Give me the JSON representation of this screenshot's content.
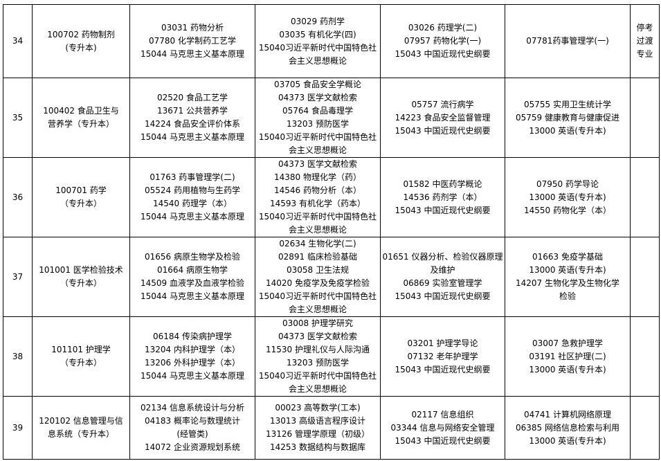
{
  "rows": [
    {
      "num": "34",
      "major": [
        "100702 药物制剂",
        "(专升本)"
      ],
      "cols": [
        [
          "03031 药物分析",
          "07780 化学制药工艺学",
          "15044 马克思主义基本原理"
        ],
        [
          "03029 药剂学",
          "03035 有机化学(四)",
          "15040习近平新时代中国特色社",
          "会主义思想概论"
        ],
        [
          "03026 药理学(二)",
          "07957 药物化学(一)",
          "15043 中国近现代史纲要"
        ],
        [
          "07781药事管理学(一)"
        ]
      ],
      "note": [
        "停考",
        "过渡",
        "专业"
      ]
    },
    {
      "num": "35",
      "major": [
        "100402  食品卫生与",
        "营养学（专升本）"
      ],
      "cols": [
        [
          "02520 食品工艺学",
          "13671 公共营养学",
          "14224 食品安全评价体系",
          "15044 马克思主义基本原理"
        ],
        [
          "03705 食品安全学概论",
          "04373 医学文献检索",
          "05764 食品毒理学",
          "13203 预防医学",
          "15040习近平新时代中国特色社",
          "会主义思想概论"
        ],
        [
          "05757 流行病学",
          "14223 食品安全监督管理",
          "15043 中国近现代史纲要"
        ],
        [
          "05755 实用卫生统计学",
          "05759 健康教育与健康促进",
          "13000 英语(专升本)"
        ]
      ],
      "note": []
    },
    {
      "num": "36",
      "major": [
        "100701 药学",
        "（专升本）"
      ],
      "cols": [
        [
          "01763 药事管理学(二)",
          "05524 药用植物与生药学",
          "14540 药理学（本）",
          "15044 马克思主义基本原理"
        ],
        [
          "04373 医学文献检索",
          "14380 物理化学（药）",
          "14546 药物分析（本）",
          "14593 有机化学（药本）",
          "15040习近平新时代中国特色社",
          "会主义思想概论"
        ],
        [
          "01582 中医药学概论",
          "14536 药剂学（本）",
          "15043 中国近现代史纲要"
        ],
        [
          "07950 药学导论",
          "13000 英语(专升本)",
          "14550 药物化学（本）"
        ]
      ],
      "note": []
    },
    {
      "num": "37",
      "major": [
        "101001  医学检验技术",
        "（专升本）"
      ],
      "cols": [
        [
          "01656 病原生物学及检验",
          "01664 病原生物学",
          "14509 血液学及血液学检验",
          "15044 马克思主义基本原理"
        ],
        [
          "02634 生物化学(二)",
          "02891 临床检验基础",
          "03058 卫生法规",
          "14020 免疫学及免疫学检验",
          "15040习近平新时代中国特色社",
          "会主义思想概论"
        ],
        [
          "01651 仪器分析、检验仪器原理",
          "及维护",
          "06869 实验室管理学",
          "15043 中国近现代史纲要"
        ],
        [
          "01663 免疫学基础",
          "13000 英语(专升本)",
          "14207 生物化学及生物化学",
          "检验"
        ]
      ],
      "note": []
    },
    {
      "num": "38",
      "major": [
        "101101  护理学",
        "（专升本）"
      ],
      "cols": [
        [
          "06184 传染病护理学",
          "13204 内科护理学（本）",
          "13206 外科护理学（本）",
          "15044 马克思主义基本原理"
        ],
        [
          "03008 护理学研究",
          "04373 医学文献检索",
          "11530 护理礼仪与人际沟通",
          "13203 预防医学",
          "15040习近平新时代中国特色社",
          "会主义思想概论"
        ],
        [
          "03201 护理学导论",
          "07132 老年护理学",
          "15043 中国近现代史纲要"
        ],
        [
          "03007 急救护理学",
          "03191 社区护理(二)",
          "13000 英语(专升本)"
        ]
      ],
      "note": []
    },
    {
      "num": "39",
      "major": [
        "120102  信息管理与信",
        "息系统（专升本）"
      ],
      "cols": [
        [
          "02134 信息系统设计与分析",
          "04183 概率论与数理统计",
          "(经管类)",
          "14072 企业资源规划系统"
        ],
        [
          "00023 高等数学(工本)",
          "13013 高级语言程序设计",
          "13126 管理学原理（初级）",
          "14253 数据结构与数据库"
        ],
        [
          "02117 信息组织",
          "03344 信息与网络安全管理",
          "15043 中国近现代史纲要"
        ],
        [
          "04741 计算机网络原理",
          "06385 网络信息检索与利用",
          "13000 英语(专升本)"
        ]
      ],
      "note": []
    }
  ]
}
